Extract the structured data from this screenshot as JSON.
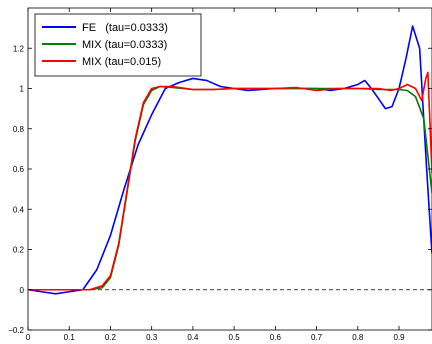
{
  "chart_data": {
    "type": "line",
    "xlim": [
      0,
      0.98
    ],
    "ylim": [
      -0.2,
      1.4
    ],
    "x_ticks": [
      0,
      0.1,
      0.2,
      0.3,
      0.4,
      0.5,
      0.6,
      0.7,
      0.8,
      0.9
    ],
    "y_ticks": [
      -0.2,
      0,
      0.2,
      0.4,
      0.6,
      0.8,
      1,
      1.2
    ],
    "x_tick_labels": [
      "0",
      "0.1",
      "0.2",
      "0.3",
      "0.4",
      "0.5",
      "0.6",
      "0.7",
      "0.8",
      "0.9"
    ],
    "y_tick_labels": [
      "−0.2",
      "0",
      "0.2",
      "0.4",
      "0.6",
      "0.8",
      "1",
      "1.2"
    ],
    "grid": false,
    "legend_position": "top-left",
    "reference_line": {
      "y": 0,
      "style": "dashed",
      "color": "#000000"
    },
    "series": [
      {
        "name": "FE   (tau=0.0333)",
        "color": "#0000ff",
        "points": [
          [
            0.0,
            0.0
          ],
          [
            0.033,
            -0.01
          ],
          [
            0.067,
            -0.02
          ],
          [
            0.1,
            -0.01
          ],
          [
            0.133,
            0.0
          ],
          [
            0.167,
            0.1
          ],
          [
            0.2,
            0.27
          ],
          [
            0.233,
            0.5
          ],
          [
            0.267,
            0.72
          ],
          [
            0.3,
            0.87
          ],
          [
            0.333,
            1.0
          ],
          [
            0.367,
            1.03
          ],
          [
            0.4,
            1.05
          ],
          [
            0.433,
            1.04
          ],
          [
            0.467,
            1.01
          ],
          [
            0.5,
            1.0
          ],
          [
            0.533,
            0.99
          ],
          [
            0.567,
            0.995
          ],
          [
            0.6,
            1.0
          ],
          [
            0.633,
            1.0
          ],
          [
            0.667,
            1.0
          ],
          [
            0.7,
            1.0
          ],
          [
            0.733,
            0.99
          ],
          [
            0.767,
            1.0
          ],
          [
            0.8,
            1.02
          ],
          [
            0.817,
            1.04
          ],
          [
            0.833,
            1.0
          ],
          [
            0.85,
            0.95
          ],
          [
            0.867,
            0.9
          ],
          [
            0.883,
            0.91
          ],
          [
            0.9,
            1.0
          ],
          [
            0.917,
            1.15
          ],
          [
            0.933,
            1.31
          ],
          [
            0.95,
            1.2
          ],
          [
            0.967,
            0.6
          ],
          [
            0.98,
            0.18
          ]
        ]
      },
      {
        "name": "MIX (tau=0.0333)",
        "color": "#008000",
        "points": [
          [
            0.0,
            0.0
          ],
          [
            0.1,
            0.0
          ],
          [
            0.15,
            0.0
          ],
          [
            0.18,
            0.01
          ],
          [
            0.2,
            0.06
          ],
          [
            0.22,
            0.22
          ],
          [
            0.24,
            0.48
          ],
          [
            0.26,
            0.74
          ],
          [
            0.28,
            0.92
          ],
          [
            0.3,
            0.99
          ],
          [
            0.32,
            1.01
          ],
          [
            0.35,
            1.005
          ],
          [
            0.4,
            0.995
          ],
          [
            0.45,
            0.995
          ],
          [
            0.5,
            1.0
          ],
          [
            0.55,
            1.0
          ],
          [
            0.6,
            1.0
          ],
          [
            0.65,
            1.0
          ],
          [
            0.7,
            1.0
          ],
          [
            0.75,
            1.0
          ],
          [
            0.8,
            1.0
          ],
          [
            0.85,
            0.995
          ],
          [
            0.9,
            0.995
          ],
          [
            0.92,
            0.99
          ],
          [
            0.94,
            0.96
          ],
          [
            0.96,
            0.85
          ],
          [
            0.98,
            0.48
          ]
        ]
      },
      {
        "name": "MIX (tau=0.015)",
        "color": "#ff0000",
        "points": [
          [
            0.0,
            0.0
          ],
          [
            0.1,
            0.0
          ],
          [
            0.15,
            0.0
          ],
          [
            0.18,
            0.02
          ],
          [
            0.2,
            0.07
          ],
          [
            0.22,
            0.23
          ],
          [
            0.24,
            0.49
          ],
          [
            0.26,
            0.75
          ],
          [
            0.28,
            0.93
          ],
          [
            0.3,
            1.0
          ],
          [
            0.32,
            1.01
          ],
          [
            0.35,
            1.01
          ],
          [
            0.4,
            0.995
          ],
          [
            0.45,
            0.995
          ],
          [
            0.5,
            1.0
          ],
          [
            0.55,
            1.0
          ],
          [
            0.6,
            1.0
          ],
          [
            0.65,
            1.005
          ],
          [
            0.7,
            0.99
          ],
          [
            0.75,
            1.0
          ],
          [
            0.8,
            1.0
          ],
          [
            0.85,
            1.0
          ],
          [
            0.88,
            0.99
          ],
          [
            0.9,
            1.0
          ],
          [
            0.92,
            1.02
          ],
          [
            0.94,
            1.0
          ],
          [
            0.955,
            0.94
          ],
          [
            0.965,
            1.05
          ],
          [
            0.97,
            1.08
          ],
          [
            0.98,
            0.58
          ]
        ]
      }
    ]
  }
}
